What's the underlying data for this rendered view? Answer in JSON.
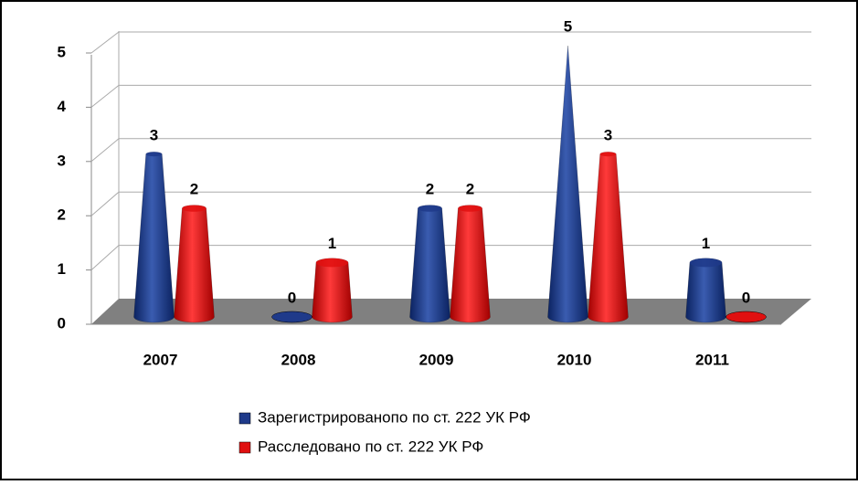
{
  "chart_data": {
    "type": "bar",
    "categories": [
      "2007",
      "2008",
      "2009",
      "2010",
      "2011"
    ],
    "series": [
      {
        "name": "Зарегистрированопо по ст. 222 УК РФ",
        "color": "#1f3a8a",
        "values": [
          3,
          0,
          2,
          5,
          1
        ]
      },
      {
        "name": "Расследовано по ст. 222 УК РФ",
        "color": "#e01010",
        "values": [
          2,
          1,
          2,
          3,
          0
        ]
      }
    ],
    "ylim": [
      0,
      5
    ],
    "yticks": [
      0,
      1,
      2,
      3,
      4,
      5
    ],
    "grid": true
  }
}
